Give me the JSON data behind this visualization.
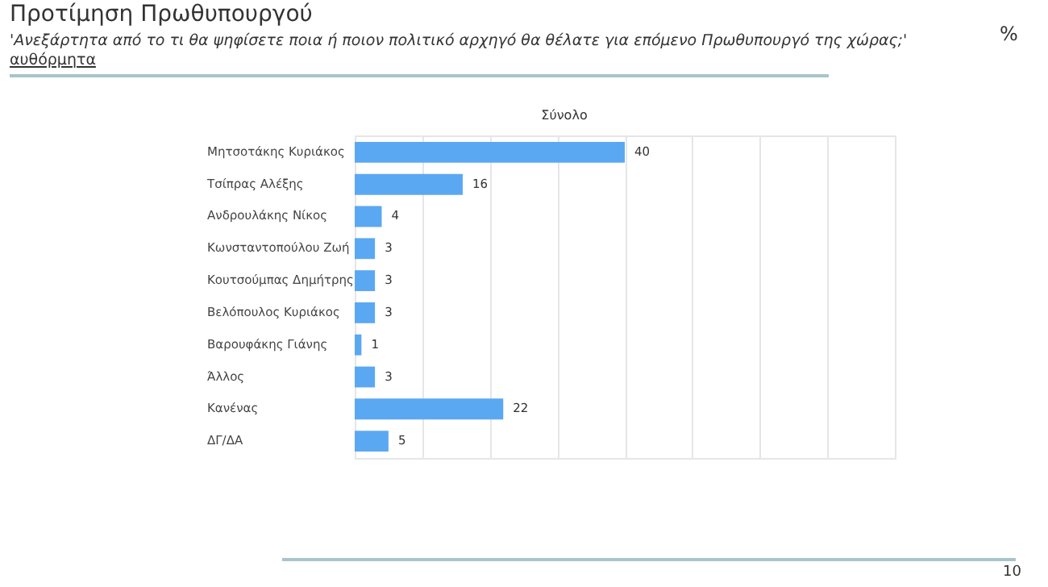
{
  "chart_data": {
    "type": "bar",
    "orientation": "horizontal",
    "title": "Προτίμηση Πρωθυπουργού",
    "subtitle": "'Ανεξάρτητα από το τι θα ψηφίσετε ποια ή ποιον πολιτικό αρχηγό θα θέλατε για επόμενο Πρωθυπουργό της χώρας;'",
    "annotations": [
      "αυθόρμητα",
      "%",
      "Σύνολο",
      "10"
    ],
    "categories": [
      "Μητσοτάκης Κυριάκος",
      "Τσίπρας Αλέξης",
      "Ανδρουλάκης Νίκος",
      "Κωνσταντοπούλου Ζωή",
      "Κουτσούμπας Δημήτρης",
      "Βελόπουλος Κυριάκος",
      "Βαρουφάκης Γιάνης",
      "Άλλος",
      "Κανένας",
      "ΔΓ/ΔΑ"
    ],
    "values": [
      40,
      16,
      4,
      3,
      3,
      3,
      1,
      3,
      22,
      5
    ],
    "color": "#5ba8f2",
    "xlim": [
      0,
      80
    ],
    "xticks": [
      {
        "value": 0,
        "label": null
      },
      {
        "value": 10,
        "label": null
      },
      {
        "value": 20,
        "label": null
      },
      {
        "value": 30,
        "label": null
      },
      {
        "value": 40,
        "label": null
      },
      {
        "value": 50,
        "label": null
      },
      {
        "value": 60,
        "label": null
      },
      {
        "value": 70,
        "label": null
      },
      {
        "value": 80,
        "label": null
      }
    ],
    "grid": true,
    "tick_labels": "y",
    "data_labels": true
  }
}
